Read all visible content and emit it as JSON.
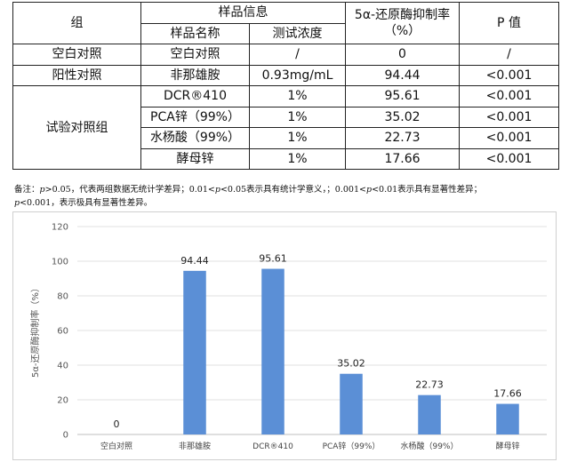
{
  "table": {
    "headers": {
      "group": "组",
      "sample_info": "样品信息",
      "sample_name": "样品名称",
      "test_conc": "测试浓度",
      "inhibition": "5α-还原酶抑制率（%）",
      "p_value": "P 值"
    },
    "rows": [
      {
        "group": "空白对照",
        "name": "空白对照",
        "conc": "/",
        "rate": "0",
        "p": "/"
      },
      {
        "group": "阳性对照",
        "name": "非那雄胺",
        "conc": "0.93mg/mL",
        "rate": "94.44",
        "p": "<0.001"
      },
      {
        "group": "试验对照组",
        "name": "DCR®410",
        "conc": "1%",
        "rate": "95.61",
        "p": "<0.001"
      },
      {
        "group": "",
        "name": "PCA锌（99%）",
        "conc": "1%",
        "rate": "35.02",
        "p": "<0.001"
      },
      {
        "group": "",
        "name": "水杨酸（99%）",
        "conc": "1%",
        "rate": "22.73",
        "p": "<0.001"
      },
      {
        "group": "",
        "name": "酵母锌",
        "conc": "1%",
        "rate": "17.66",
        "p": "<0.001"
      }
    ]
  },
  "note": {
    "prefix": "备注：",
    "p": "p",
    "s1": ">0.05，代表两组数据无统计学差异；0.01<",
    "s2": "<0.05表示具有统计学意义，；0.001<",
    "s3": "<0.01表示具有显著性差异；",
    "s4": "<0.001，表示极具有显著性差异。"
  },
  "chart_data": {
    "type": "bar",
    "categories": [
      "空白对照",
      "非那雄胺",
      "DCR®410",
      "PCA锌（99%）",
      "水杨酸（99%）",
      "酵母锌"
    ],
    "values": [
      0,
      94.44,
      95.61,
      35.02,
      22.73,
      17.66
    ],
    "data_labels": [
      "0",
      "94.44",
      "95.61",
      "35.02",
      "22.73",
      "17.66"
    ],
    "ylabel": "5α-还原酶抑制率（%）",
    "xlabel": "",
    "title": "",
    "ylim": [
      0,
      120
    ],
    "yticks": [
      0,
      20,
      40,
      60,
      80,
      100,
      120
    ],
    "grid": true,
    "legend": "none",
    "bar_color": "#5b8fd6",
    "grid_color": "#e2e2e2"
  }
}
